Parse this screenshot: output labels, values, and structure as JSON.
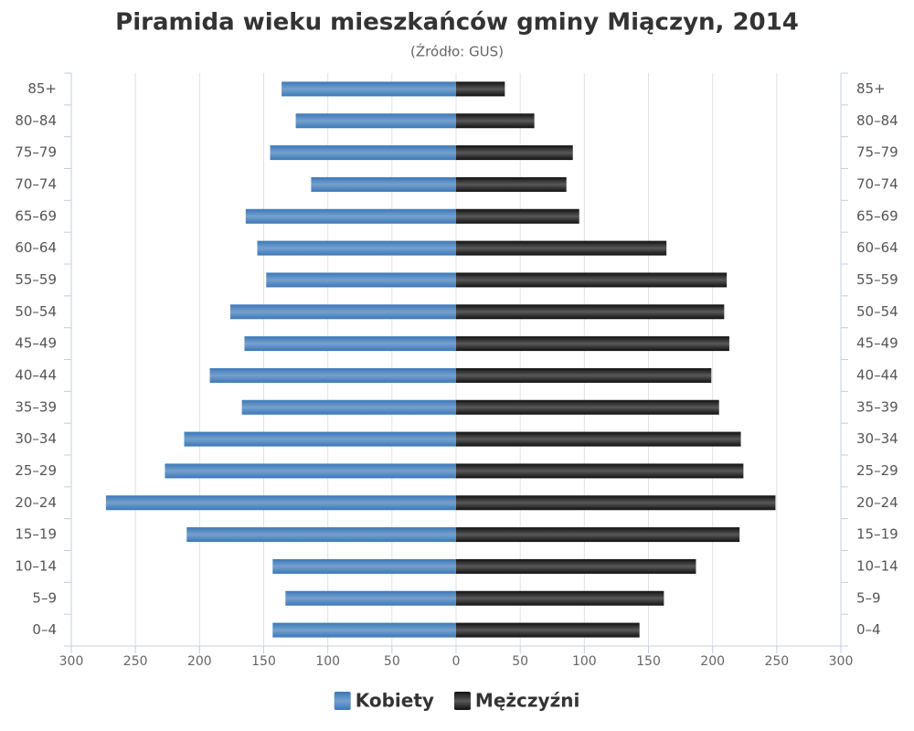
{
  "chart_data": {
    "type": "pyramid",
    "title": "Piramida wieku mieszkańców gminy Miączyn, 2014",
    "subtitle": "(Źródło: GUS)",
    "categories": [
      "85+",
      "80–84",
      "75–79",
      "70–74",
      "65–69",
      "60–64",
      "55–59",
      "50–54",
      "45–49",
      "40–44",
      "35–39",
      "30–34",
      "25–29",
      "20–24",
      "15–19",
      "10–14",
      "5–9",
      "0–4"
    ],
    "series": [
      {
        "name": "Kobiety",
        "color": "#3b78b8",
        "side": "left",
        "values": [
          136,
          125,
          145,
          113,
          164,
          155,
          148,
          176,
          165,
          192,
          167,
          212,
          227,
          273,
          210,
          143,
          133,
          143
        ]
      },
      {
        "name": "Mężczyźni",
        "color": "#111111",
        "side": "right",
        "values": [
          38,
          61,
          91,
          86,
          96,
          164,
          211,
          209,
          213,
          199,
          205,
          222,
          224,
          249,
          221,
          187,
          162,
          143
        ]
      }
    ],
    "xlim": [
      0,
      300
    ],
    "xticks": [
      0,
      50,
      100,
      150,
      200,
      250,
      300
    ],
    "grid": true,
    "legend": "bottom"
  }
}
